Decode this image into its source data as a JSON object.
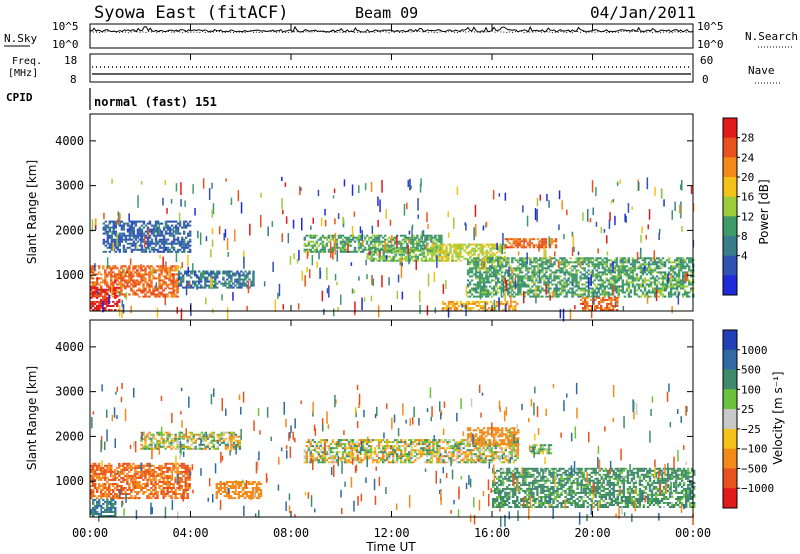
{
  "header": {
    "title": "Syowa East (fitACF)",
    "beam": "Beam 09",
    "date": "04/Jan/2011"
  },
  "nsky_panel": {
    "left_label": "N.Sky",
    "right_label": "N.Search",
    "y_ticks_left": [
      "10^5",
      "10^0"
    ],
    "y_ticks_right": [
      "10^5",
      "10^0"
    ]
  },
  "freq_panel": {
    "left_label_line1": "Freq.",
    "left_label_line2": "[MHz]",
    "right_label": "Nave",
    "y_ticks_left": [
      "18",
      "8"
    ],
    "y_ticks_right": [
      "60",
      "0"
    ]
  },
  "cpid_panel": {
    "label": "CPID",
    "text": "normal (fast) 151"
  },
  "x_axis": {
    "ticks": [
      "00:00",
      "04:00",
      "08:00",
      "12:00",
      "16:00",
      "20:00",
      "00:00"
    ],
    "label": "Time UT"
  },
  "power_panel": {
    "ylabel": "Slant Range [km]",
    "y_ticks": [
      "1000",
      "2000",
      "3000",
      "4000"
    ],
    "colorbar_label": "Power [dB]",
    "colorbar_ticks": [
      "4",
      "8",
      "12",
      "16",
      "20",
      "24",
      "28"
    ],
    "colors": [
      "#1f2bd9",
      "#2f52b5",
      "#3a7d8a",
      "#3e9a66",
      "#9ccc3a",
      "#f2c21b",
      "#f48a1a",
      "#e8521c",
      "#e11b1b"
    ]
  },
  "velocity_panel": {
    "ylabel": "Slant Range [km]",
    "y_ticks": [
      "1000",
      "2000",
      "3000",
      "4000"
    ],
    "colorbar_label": "Velocity [m s⁻¹]",
    "colorbar_ticks": [
      "1000",
      "500",
      "100",
      "25",
      "−25",
      "−100",
      "−500",
      "−1000"
    ],
    "colors": [
      "#2140b5",
      "#2f6aa3",
      "#3f8a6b",
      "#6cc23c",
      "#c8c8c8",
      "#f2c21b",
      "#f48a1a",
      "#e8521c",
      "#e11b1b"
    ]
  },
  "chart_data": [
    {
      "type": "line",
      "title": "N.Sky / N.Search",
      "x": [
        "00:00",
        "04:00",
        "08:00",
        "12:00",
        "16:00",
        "20:00",
        "00:00"
      ],
      "ylim_log10": [
        0,
        5
      ],
      "series": [
        {
          "name": "N.Sky",
          "level_log10": 3.8
        },
        {
          "name": "N.Search",
          "level_log10": 3.5
        }
      ]
    },
    {
      "type": "scatter",
      "title": "Freq. / Nave",
      "x": [
        "00:00",
        "04:00",
        "08:00",
        "12:00",
        "16:00",
        "20:00",
        "00:00"
      ],
      "ylim": [
        8,
        18
      ],
      "series": [
        {
          "name": "Freq. [MHz]",
          "value": 11.9
        },
        {
          "name": "Nave",
          "value": 35
        }
      ]
    },
    {
      "type": "heatmap",
      "title": "Power [dB]",
      "xlabel": "Time UT",
      "ylabel": "Slant Range [km]",
      "xlim_hours": [
        0,
        24
      ],
      "ylim": [
        200,
        4600
      ],
      "zlim": [
        0,
        30
      ],
      "regions": [
        {
          "t": [
            0.0,
            3.5
          ],
          "r": [
            500,
            1200
          ],
          "z": 24
        },
        {
          "t": [
            0.0,
            1.2
          ],
          "r": [
            200,
            700
          ],
          "z": 28
        },
        {
          "t": [
            3.5,
            6.5
          ],
          "r": [
            700,
            1100
          ],
          "z": 8
        },
        {
          "t": [
            0.5,
            4.0
          ],
          "r": [
            1500,
            2200
          ],
          "z": 6
        },
        {
          "t": [
            8.5,
            14.0
          ],
          "r": [
            1500,
            1900
          ],
          "z": 12
        },
        {
          "t": [
            11.0,
            14.0
          ],
          "r": [
            1300,
            1600
          ],
          "z": 14
        },
        {
          "t": [
            13.5,
            16.5
          ],
          "r": [
            1300,
            1700
          ],
          "z": 16
        },
        {
          "t": [
            16.5,
            18.5
          ],
          "r": [
            1600,
            1800
          ],
          "z": 24
        },
        {
          "t": [
            15.0,
            24.0
          ],
          "r": [
            500,
            1400
          ],
          "z": 12
        },
        {
          "t": [
            19.5,
            21.0
          ],
          "r": [
            200,
            500
          ],
          "z": 24
        },
        {
          "t": [
            14.0,
            17.0
          ],
          "r": [
            200,
            400
          ],
          "z": 20
        }
      ]
    },
    {
      "type": "heatmap",
      "title": "Velocity [m s⁻¹]",
      "xlabel": "Time UT",
      "ylabel": "Slant Range [km]",
      "xlim_hours": [
        0,
        24
      ],
      "ylim": [
        200,
        4600
      ],
      "zlim": [
        -1000,
        1000
      ],
      "regions": [
        {
          "t": [
            0.0,
            4.0
          ],
          "r": [
            600,
            1400
          ],
          "z": -500
        },
        {
          "t": [
            0.0,
            1.0
          ],
          "r": [
            200,
            600
          ],
          "z": 500
        },
        {
          "t": [
            5.0,
            6.8
          ],
          "r": [
            600,
            1000
          ],
          "z": -300
        },
        {
          "t": [
            2.0,
            6.0
          ],
          "r": [
            1700,
            2100
          ],
          "z": 0
        },
        {
          "t": [
            8.5,
            17.0
          ],
          "r": [
            1400,
            1900
          ],
          "z": 0
        },
        {
          "t": [
            17.5,
            18.3
          ],
          "r": [
            1600,
            1800
          ],
          "z": 80
        },
        {
          "t": [
            16.0,
            24.0
          ],
          "r": [
            400,
            1300
          ],
          "z": 200
        },
        {
          "t": [
            15.0,
            17.0
          ],
          "r": [
            1800,
            2200
          ],
          "z": -300
        }
      ]
    }
  ]
}
